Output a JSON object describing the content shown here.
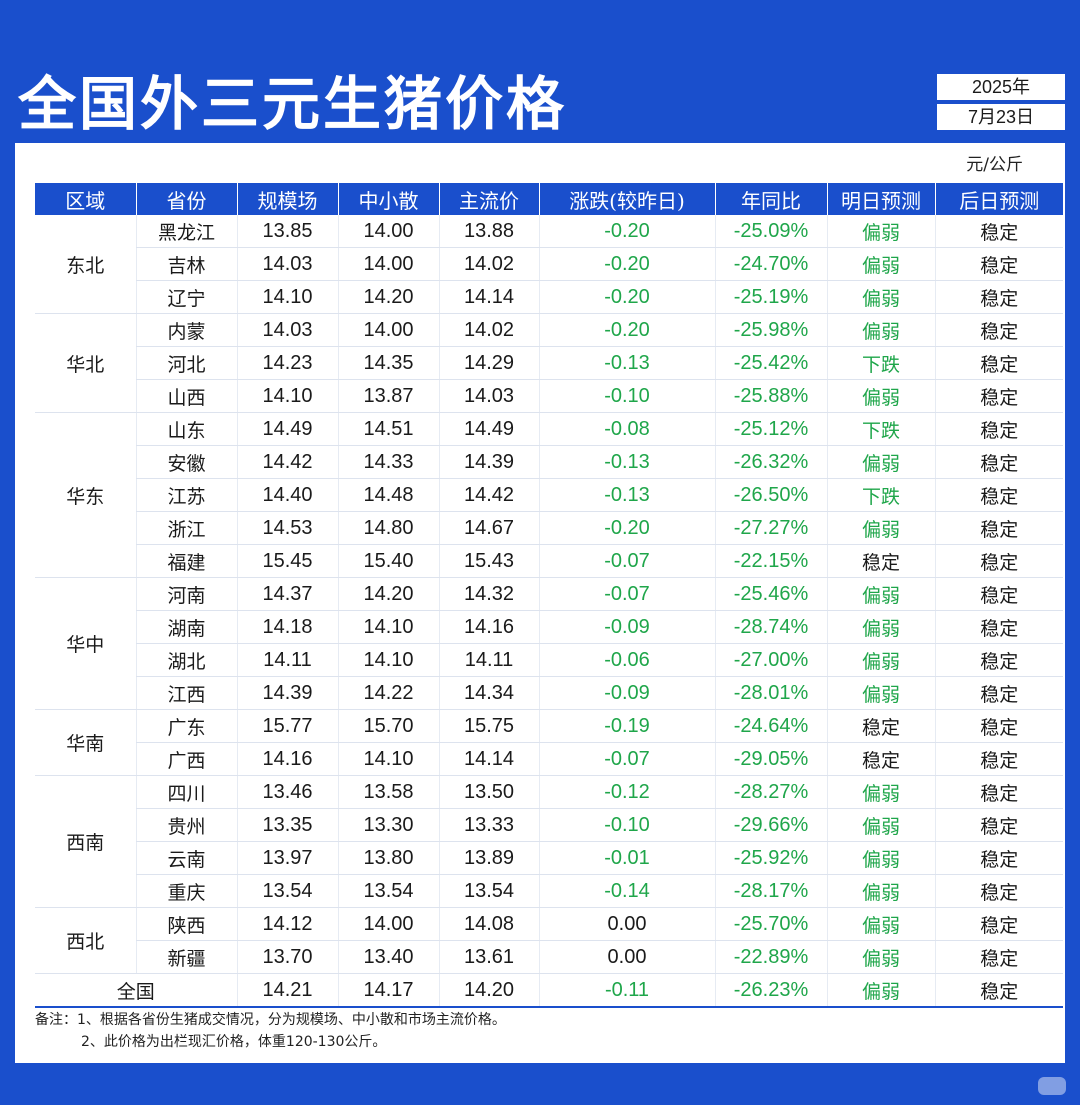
{
  "title": "全国外三元生猪价格",
  "date": {
    "year": "2025年",
    "day": "7月23日"
  },
  "unit": "元/公斤",
  "headers": [
    "区域",
    "省份",
    "规模场",
    "中小散",
    "主流价",
    "涨跌(较昨日)",
    "年同比",
    "明日预测",
    "后日预测"
  ],
  "regions": [
    {
      "name": "东北",
      "span": 3
    },
    {
      "name": "华北",
      "span": 3
    },
    {
      "name": "华东",
      "span": 5
    },
    {
      "name": "华中",
      "span": 4
    },
    {
      "name": "华南",
      "span": 2
    },
    {
      "name": "西南",
      "span": 4
    },
    {
      "name": "西北",
      "span": 2
    }
  ],
  "rows": [
    [
      "黑龙江",
      "13.85",
      "14.00",
      "13.88",
      "-0.20",
      "-25.09%",
      "偏弱",
      "稳定"
    ],
    [
      "吉林",
      "14.03",
      "14.00",
      "14.02",
      "-0.20",
      "-24.70%",
      "偏弱",
      "稳定"
    ],
    [
      "辽宁",
      "14.10",
      "14.20",
      "14.14",
      "-0.20",
      "-25.19%",
      "偏弱",
      "稳定"
    ],
    [
      "内蒙",
      "14.03",
      "14.00",
      "14.02",
      "-0.20",
      "-25.98%",
      "偏弱",
      "稳定"
    ],
    [
      "河北",
      "14.23",
      "14.35",
      "14.29",
      "-0.13",
      "-25.42%",
      "下跌",
      "稳定"
    ],
    [
      "山西",
      "14.10",
      "13.87",
      "14.03",
      "-0.10",
      "-25.88%",
      "偏弱",
      "稳定"
    ],
    [
      "山东",
      "14.49",
      "14.51",
      "14.49",
      "-0.08",
      "-25.12%",
      "下跌",
      "稳定"
    ],
    [
      "安徽",
      "14.42",
      "14.33",
      "14.39",
      "-0.13",
      "-26.32%",
      "偏弱",
      "稳定"
    ],
    [
      "江苏",
      "14.40",
      "14.48",
      "14.42",
      "-0.13",
      "-26.50%",
      "下跌",
      "稳定"
    ],
    [
      "浙江",
      "14.53",
      "14.80",
      "14.67",
      "-0.20",
      "-27.27%",
      "偏弱",
      "稳定"
    ],
    [
      "福建",
      "15.45",
      "15.40",
      "15.43",
      "-0.07",
      "-22.15%",
      "稳定",
      "稳定"
    ],
    [
      "河南",
      "14.37",
      "14.20",
      "14.32",
      "-0.07",
      "-25.46%",
      "偏弱",
      "稳定"
    ],
    [
      "湖南",
      "14.18",
      "14.10",
      "14.16",
      "-0.09",
      "-28.74%",
      "偏弱",
      "稳定"
    ],
    [
      "湖北",
      "14.11",
      "14.10",
      "14.11",
      "-0.06",
      "-27.00%",
      "偏弱",
      "稳定"
    ],
    [
      "江西",
      "14.39",
      "14.22",
      "14.34",
      "-0.09",
      "-28.01%",
      "偏弱",
      "稳定"
    ],
    [
      "广东",
      "15.77",
      "15.70",
      "15.75",
      "-0.19",
      "-24.64%",
      "稳定",
      "稳定"
    ],
    [
      "广西",
      "14.16",
      "14.10",
      "14.14",
      "-0.07",
      "-29.05%",
      "稳定",
      "稳定"
    ],
    [
      "四川",
      "13.46",
      "13.58",
      "13.50",
      "-0.12",
      "-28.27%",
      "偏弱",
      "稳定"
    ],
    [
      "贵州",
      "13.35",
      "13.30",
      "13.33",
      "-0.10",
      "-29.66%",
      "偏弱",
      "稳定"
    ],
    [
      "云南",
      "13.97",
      "13.80",
      "13.89",
      "-0.01",
      "-25.92%",
      "偏弱",
      "稳定"
    ],
    [
      "重庆",
      "13.54",
      "13.54",
      "13.54",
      "-0.14",
      "-28.17%",
      "偏弱",
      "稳定"
    ],
    [
      "陕西",
      "14.12",
      "14.00",
      "14.08",
      "0.00",
      "-25.70%",
      "偏弱",
      "稳定"
    ],
    [
      "新疆",
      "13.70",
      "13.40",
      "13.61",
      "0.00",
      "-22.89%",
      "偏弱",
      "稳定"
    ]
  ],
  "national": [
    "全国",
    "14.21",
    "14.17",
    "14.20",
    "-0.11",
    "-26.23%",
    "偏弱",
    "稳定"
  ],
  "notes": [
    "备注：1、根据各省份生猪成交情况，分为规模场、中小散和市场主流价格。",
    "2、此价格为出栏现汇价格，体重120-130公斤。"
  ],
  "colors": {
    "accent": "#1a4fcc",
    "positive_text": "#1fa64a"
  }
}
